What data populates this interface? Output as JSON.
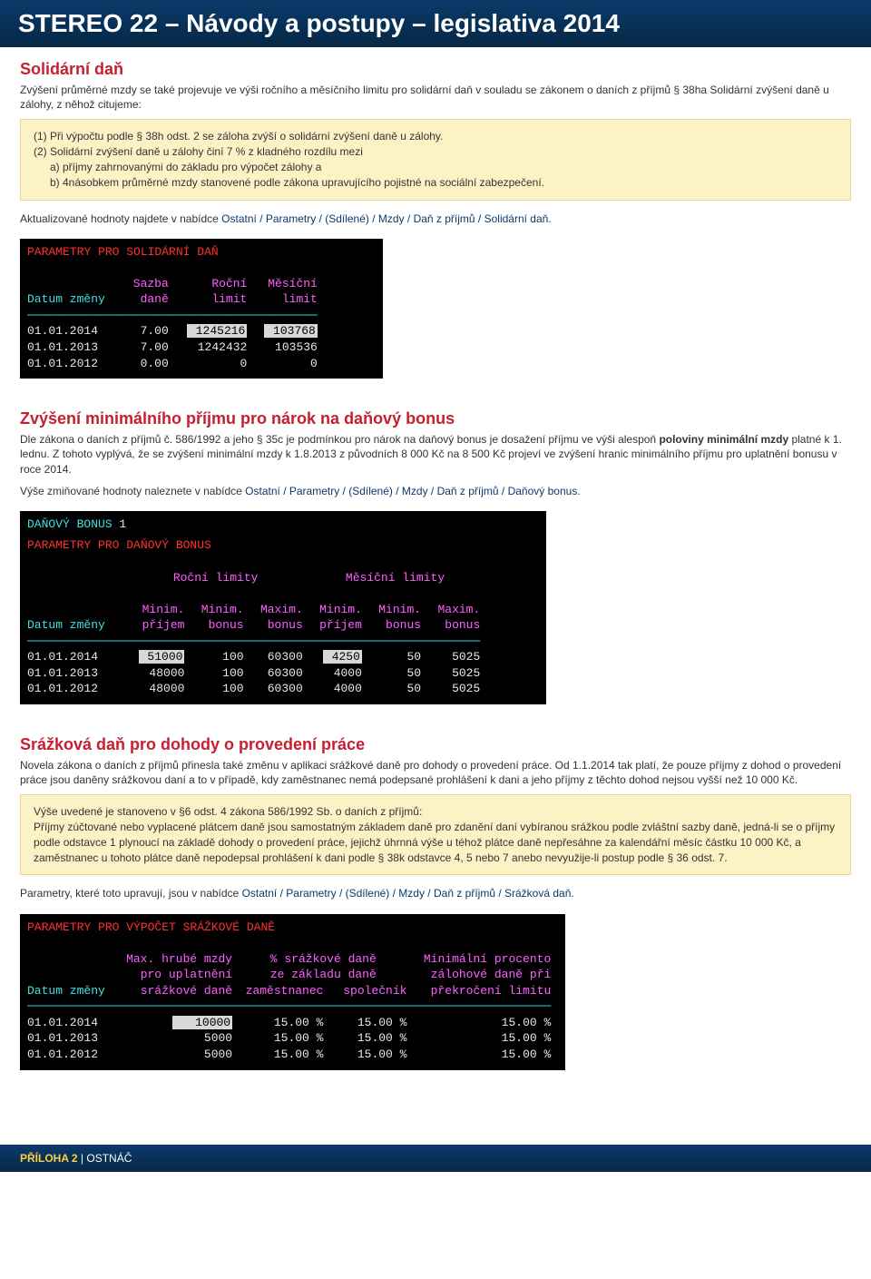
{
  "header": {
    "title": "STEREO 22 – Návody a postupy – legislativa 2014"
  },
  "section1": {
    "title": "Solidární daň",
    "intro": "Zvýšení průměrné mzdy se také projevuje ve výši ročního a měsíčního limitu pro solidární daň v souladu se zákonem o daních z příjmů § 38ha Solidární zvýšení daně u zálohy, z něhož citujeme:",
    "box_line1": "(1) Při výpočtu podle § 38h odst. 2 se záloha zvýší o solidární zvýšení daně u zálohy.",
    "box_line2": "(2) Solidární zvýšení daně u zálohy činí 7 % z kladného rozdílu mezi",
    "box_line2a": "a) příjmy zahrnovanými do základu pro výpočet zálohy a",
    "box_line2b": "b) 4násobkem průměrné mzdy stanovené podle zákona upravujícího pojistné na sociální zabezpečení.",
    "after_box_pre": "Aktualizované hodnoty najdete v nabídce ",
    "after_box_path": "Ostatní / Parametry / (Sdílené) / Mzdy / Daň z příjmů / Solidární daň."
  },
  "term1": {
    "title": " PARAMETRY PRO SOLIDÁRNÍ DAŇ ",
    "h1": "Datum změny",
    "h2a": "Sazba",
    "h2b": "daně",
    "h3a": "Roční",
    "h3b": "limit",
    "h4a": "Měsíční",
    "h4b": "limit",
    "rows": [
      {
        "d": "01.01.2014",
        "s": "7.00",
        "r": "1245216",
        "r_hi": true,
        "m": "103768",
        "m_hi": true
      },
      {
        "d": "01.01.2013",
        "s": "7.00",
        "r": "1242432",
        "m": "103536"
      },
      {
        "d": "01.01.2012",
        "s": "0.00",
        "r": "0",
        "m": "0"
      }
    ]
  },
  "section2": {
    "title": "Zvýšení minimálního příjmu pro nárok na daňový bonus",
    "p1a": "Dle zákona o daních z příjmů č. 586/1992 a jeho § 35c je podmínkou pro nárok na daňový bonus je dosažení příjmu ve výši alespoň ",
    "p1bold1": "poloviny minimální mzdy",
    "p1b": " platné k 1. lednu. Z tohoto vyplývá, že se zvýšení minimální mzdy k 1.8.2013 z původních 8 000 Kč na 8 500 Kč projeví ve zvýšení hranic minimálního příjmu pro uplatnění bonusu v roce 2014.",
    "p2_pre": "Výše zmiňované hodnoty naleznete v nabídce ",
    "p2_path": "Ostatní / Parametry / (Sdílené) / Mzdy / Daň z příjmů / Daňový bonus."
  },
  "term2": {
    "top": "DAŇOVÝ BONUS",
    "top_n": "1",
    "title": " PARAMETRY PRO DAŇOVÝ BONUS ",
    "grp1": "Roční limity",
    "grp2": "Měsíční limity",
    "h_date": "Datum změny",
    "h1a": "Minim.",
    "h1b": "příjem",
    "h2a": "Minim.",
    "h2b": "bonus",
    "h3a": "Maxim.",
    "h3b": "bonus",
    "h4a": "Minim.",
    "h4b": "příjem",
    "h5a": "Minim.",
    "h5b": "bonus",
    "h6a": "Maxim.",
    "h6b": "bonus",
    "rows": [
      {
        "d": "01.01.2014",
        "c1": "51000",
        "c1_hi": true,
        "c2": "100",
        "c3": "60300",
        "c4": "4250",
        "c4_hi": true,
        "c5": "50",
        "c6": "5025"
      },
      {
        "d": "01.01.2013",
        "c1": "48000",
        "c2": "100",
        "c3": "60300",
        "c4": "4000",
        "c5": "50",
        "c6": "5025"
      },
      {
        "d": "01.01.2012",
        "c1": "48000",
        "c2": "100",
        "c3": "60300",
        "c4": "4000",
        "c5": "50",
        "c6": "5025"
      }
    ]
  },
  "section3": {
    "title": "Srážková daň pro dohody o provedení práce",
    "p1": "Novela zákona o daních z příjmů přinesla také změnu v aplikaci srážkové daně pro dohody o provedení práce. Od 1.1.2014 tak platí, že pouze příjmy z dohod o provedení práce jsou daněny srážkovou daní a to v případě, kdy zaměstnanec nemá podepsané prohlášení k dani a jeho příjmy z těchto dohod nejsou vyšší než 10 000 Kč.",
    "box_l1": "Výše uvedené je stanoveno v §6 odst. 4 zákona 586/1992 Sb. o daních z příjmů:",
    "box_l2": "Příjmy zúčtované nebo vyplacené plátcem daně jsou samostatným základem daně pro zdanění daní vybíranou srážkou podle zvláštní sazby daně, jedná-li se o příjmy podle odstavce 1 plynoucí na základě dohody o provedení práce, jejichž úhrnná výše u téhož plátce daně nepřesáhne za kalendářní měsíc částku 10 000 Kč, a zaměstnanec u tohoto plátce daně nepodepsal prohlášení k dani podle § 38k odstavce 4, 5 nebo 7 anebo nevyužije-li postup podle § 36 odst. 7.",
    "p2_pre": "Parametry, které toto upravují, jsou v nabídce ",
    "p2_path": "Ostatní / Parametry / (Sdílené) / Mzdy / Daň z příjmů / Srážková daň."
  },
  "term3": {
    "title": " PARAMETRY PRO VÝPOČET SRÁŽKOVÉ DANĚ ",
    "h_date": "Datum změny",
    "h1a": "Max. hrubé mzdy",
    "h1b": "pro uplatnění",
    "h1c": "srážkové daně",
    "h2a": "% srážkové daně",
    "h2b": "ze základu daně",
    "h2c1": "zaměstnanec",
    "h2c2": "společník",
    "h3a": "Minimální procento",
    "h3b": "zálohové daně při",
    "h3c": "překročení limitu",
    "rows": [
      {
        "d": "01.01.2014",
        "c1": "10000",
        "c1_hi": true,
        "c2": "15.00 %",
        "c3": "15.00 %",
        "c4": "15.00 %"
      },
      {
        "d": "01.01.2013",
        "c1": "5000",
        "c2": "15.00 %",
        "c3": "15.00 %",
        "c4": "15.00 %"
      },
      {
        "d": "01.01.2012",
        "c1": "5000",
        "c2": "15.00 %",
        "c3": "15.00 %",
        "c4": "15.00 %"
      }
    ]
  },
  "footer": {
    "l1": "PŘÍLOHA 2",
    "sep": " | ",
    "l2": "OSTNÁČ"
  }
}
